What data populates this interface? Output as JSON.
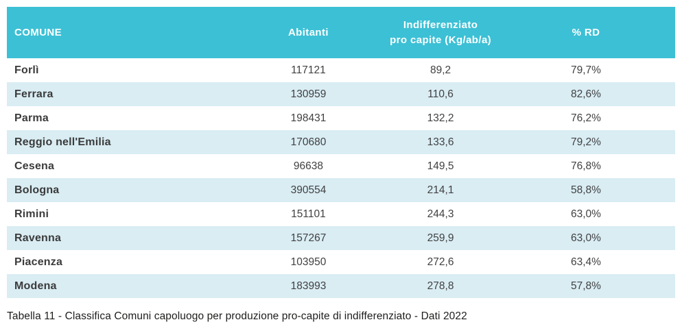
{
  "table": {
    "headers": {
      "comune": "COMUNE",
      "abitanti": "Abitanti",
      "indifferenziato": "Indifferenziato\npro capite (Kg/ab/a)",
      "rd": "% RD"
    },
    "rows": [
      {
        "comune": "Forlì",
        "abitanti": "117121",
        "indifferenziato": "89,2",
        "rd": "79,7%"
      },
      {
        "comune": "Ferrara",
        "abitanti": "130959",
        "indifferenziato": "110,6",
        "rd": "82,6%"
      },
      {
        "comune": "Parma",
        "abitanti": "198431",
        "indifferenziato": "132,2",
        "rd": "76,2%"
      },
      {
        "comune": "Reggio nell'Emilia",
        "abitanti": "170680",
        "indifferenziato": "133,6",
        "rd": "79,2%"
      },
      {
        "comune": "Cesena",
        "abitanti": "96638",
        "indifferenziato": "149,5",
        "rd": "76,8%"
      },
      {
        "comune": "Bologna",
        "abitanti": "390554",
        "indifferenziato": "214,1",
        "rd": "58,8%"
      },
      {
        "comune": "Rimini",
        "abitanti": "151101",
        "indifferenziato": "244,3",
        "rd": "63,0%"
      },
      {
        "comune": "Ravenna",
        "abitanti": "157267",
        "indifferenziato": "259,9",
        "rd": "63,0%"
      },
      {
        "comune": "Piacenza",
        "abitanti": "103950",
        "indifferenziato": "272,6",
        "rd": "63,4%"
      },
      {
        "comune": "Modena",
        "abitanti": "183993",
        "indifferenziato": "278,8",
        "rd": "57,8%"
      }
    ]
  },
  "caption": "Tabella 11 - Classifica Comuni capoluogo per produzione pro-capite di indifferenziato - Dati 2022",
  "colors": {
    "header_bg": "#3cc0d5",
    "header_text": "#ffffff",
    "row_alt_bg": "#d9edf3",
    "body_text": "#414042"
  }
}
